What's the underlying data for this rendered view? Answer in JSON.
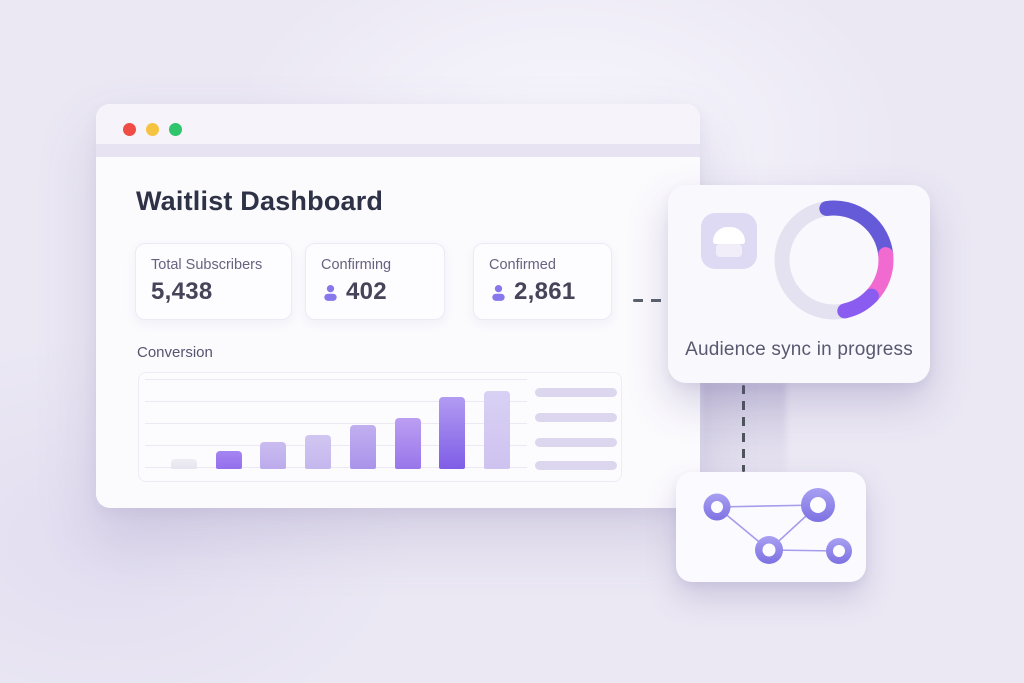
{
  "window": {
    "title": "Waitlist Dashboard",
    "controls": {
      "close": "#f04b45",
      "minimize": "#f5c242",
      "zoom": "#2fc56d"
    }
  },
  "stats": [
    {
      "label": "Total Subscribers",
      "value": "5,438",
      "has_icon": false
    },
    {
      "label": "Confirming",
      "value": "402",
      "has_icon": true,
      "icon": "user-icon"
    },
    {
      "label": "Confirmed",
      "value": "2,861",
      "has_icon": true,
      "icon": "user-icon"
    }
  ],
  "chart_data": {
    "type": "bar",
    "title": "Conversion",
    "categories": [
      "",
      "",
      "",
      "",
      "",
      "",
      "",
      ""
    ],
    "values": [
      13,
      23,
      35,
      44,
      56,
      65,
      92,
      100
    ],
    "ylim": [
      0,
      100
    ],
    "xlabel": "",
    "ylabel": "",
    "grid": true,
    "legend": false,
    "bar_colors": [
      {
        "top": "#eeedf3",
        "bottom": "#e6e4ee"
      },
      {
        "top": "#a585f2",
        "bottom": "#9470ec"
      },
      {
        "top": "#cabcf0",
        "bottom": "#bcabec"
      },
      {
        "top": "#d1c6f1",
        "bottom": "#c5b7ee"
      },
      {
        "top": "#c1aff0",
        "bottom": "#aa93ea"
      },
      {
        "top": "#bb9ff2",
        "bottom": "#9876ea"
      },
      {
        "top": "#b29bf2",
        "bottom": "#7f5de6"
      },
      {
        "top": "#d9d1f4",
        "bottom": "#cec2f0"
      }
    ],
    "placeholder_legend_lines": 4
  },
  "sync_card": {
    "label": "Audience sync in progress",
    "icon": "contact-tile-icon",
    "ring": {
      "track_color": "#e4e1f1",
      "segments": [
        {
          "name": "indigo",
          "color": "#655ad8"
        },
        {
          "name": "pink",
          "color": "#f06ad0"
        },
        {
          "name": "violet",
          "color": "#8a5cf0"
        }
      ]
    }
  },
  "network_card": {
    "icon": "network-graph-icon",
    "node_color_top": "#a8a0f2",
    "node_color_bottom": "#7e71e2",
    "edge_color": "#a69cec"
  },
  "connectors": {
    "style": "dashed",
    "color": "#51565f"
  },
  "colors": {
    "user_icon": "#8678ec",
    "accent": "#8a5cf0",
    "background": "#ebe8f4"
  }
}
